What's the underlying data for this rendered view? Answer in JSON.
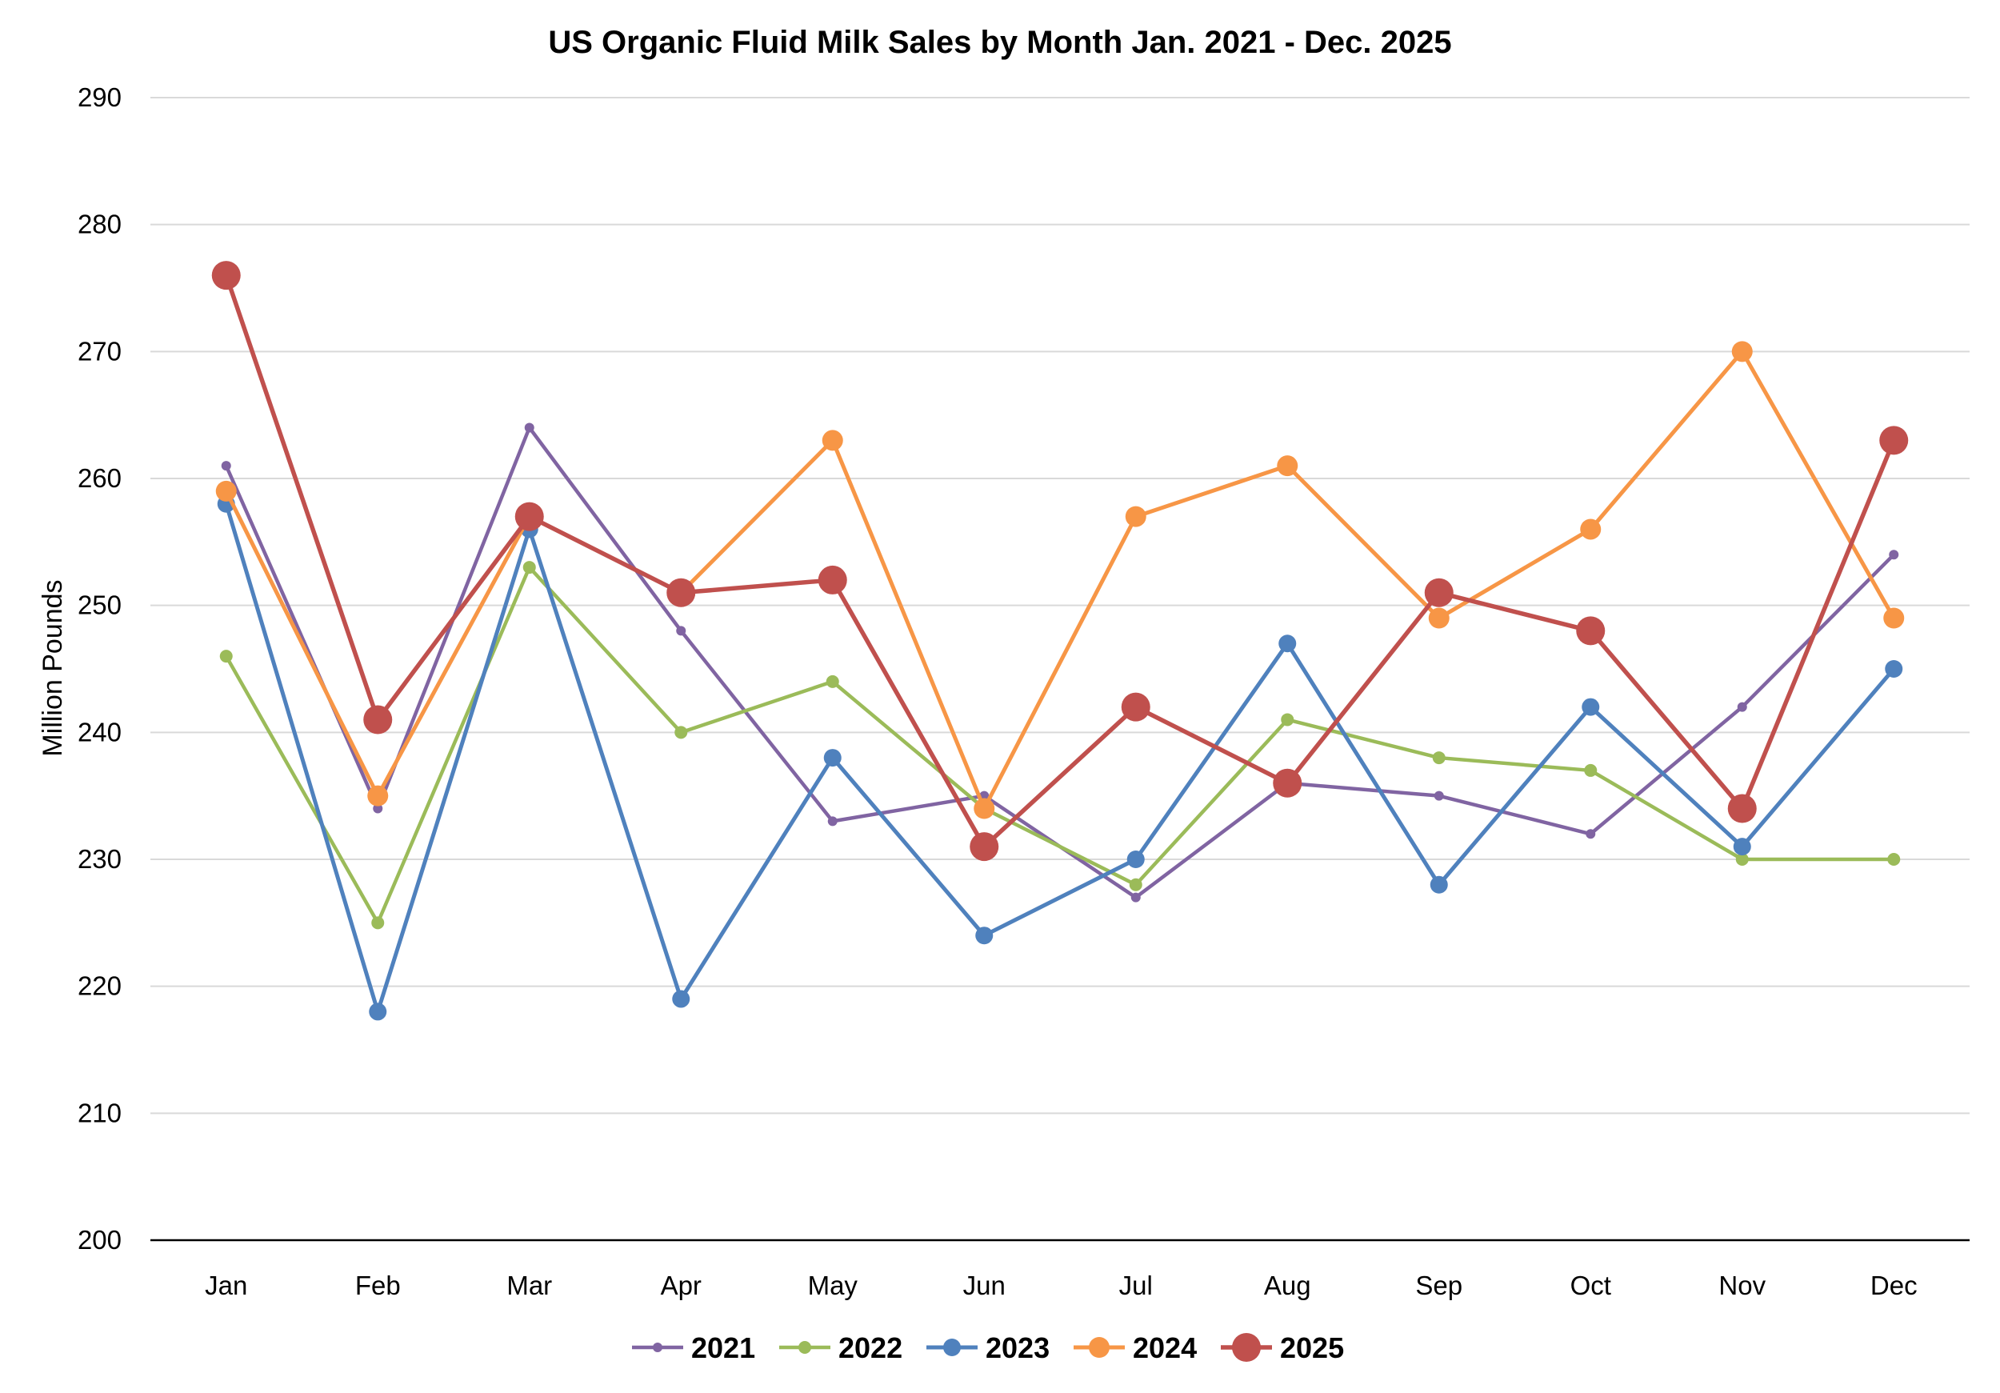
{
  "chart_data": {
    "type": "line",
    "title": "US Organic Fluid Milk Sales by Month Jan. 2021 - Dec. 2025",
    "xlabel": "",
    "ylabel": "Million Pounds",
    "ylim": [
      200,
      290
    ],
    "yticks": [
      "200",
      "210",
      "220",
      "230",
      "240",
      "250",
      "260",
      "270",
      "280",
      "290"
    ],
    "grid": true,
    "legend_position": "bottom",
    "categories": [
      "Jan",
      "Feb",
      "Mar",
      "Apr",
      "May",
      "Jun",
      "Jul",
      "Aug",
      "Sep",
      "Oct",
      "Nov",
      "Dec"
    ],
    "series": [
      {
        "name": "2021",
        "color": "#8064a2",
        "values": [
          261,
          234,
          264,
          248,
          233,
          235,
          227,
          236,
          235,
          232,
          242,
          254
        ]
      },
      {
        "name": "2022",
        "color": "#9bbb59",
        "values": [
          246,
          225,
          253,
          240,
          244,
          234,
          228,
          241,
          238,
          237,
          230,
          230
        ]
      },
      {
        "name": "2023",
        "color": "#4f81bd",
        "values": [
          258,
          218,
          256,
          219,
          238,
          224,
          230,
          247,
          228,
          242,
          231,
          245
        ]
      },
      {
        "name": "2024",
        "color": "#f79646",
        "values": [
          259,
          235,
          257,
          251,
          263,
          234,
          257,
          261,
          249,
          256,
          270,
          249
        ]
      },
      {
        "name": "2025",
        "color": "#c0504d",
        "values": [
          276,
          241,
          257,
          251,
          252,
          231,
          242,
          236,
          251,
          248,
          234,
          263
        ]
      }
    ]
  }
}
